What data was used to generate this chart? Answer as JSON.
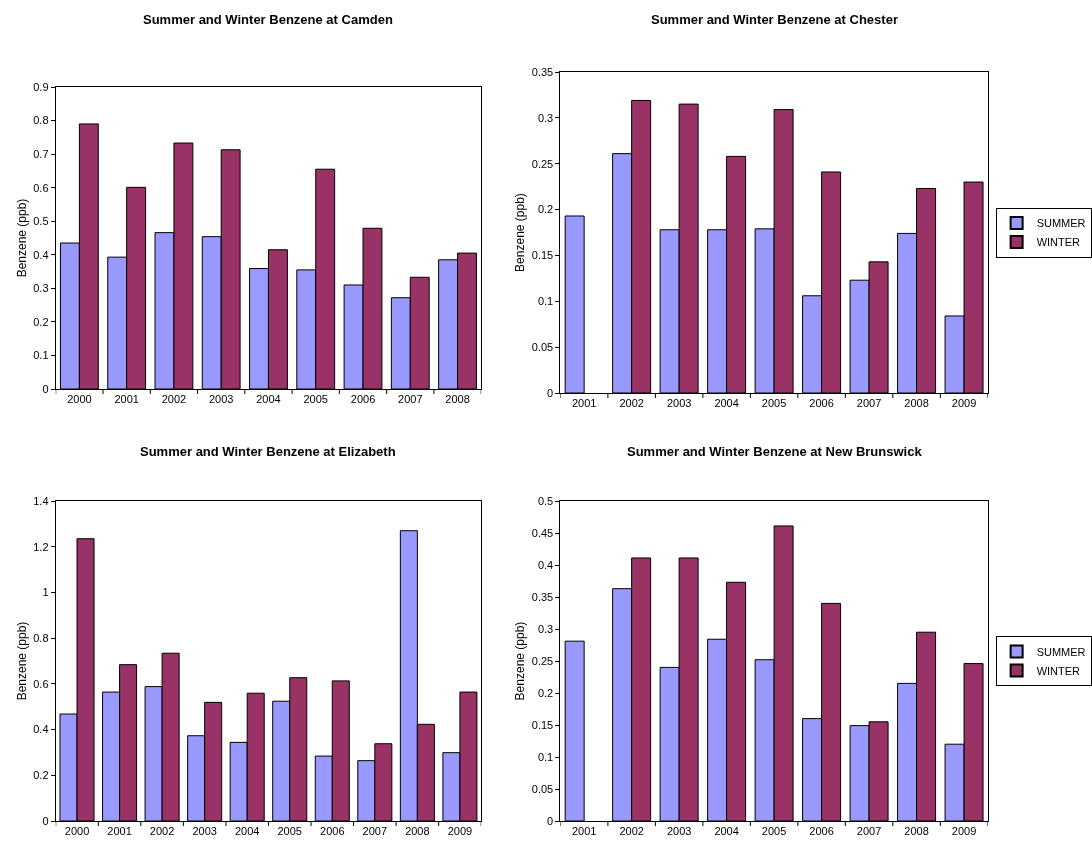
{
  "chart_data": [
    {
      "type": "bar",
      "title": "Summer and Winter Benzene at Camden",
      "ylabel": "Benzene (ppb)",
      "categories": [
        "2000",
        "2001",
        "2002",
        "2003",
        "2004",
        "2005",
        "2006",
        "2007",
        "2008"
      ],
      "ylim": [
        0,
        0.9
      ],
      "yticks": [
        0,
        0.1,
        0.2,
        0.3,
        0.4,
        0.5,
        0.6,
        0.7,
        0.8,
        0.9
      ],
      "legend": false,
      "series": [
        {
          "color": "#9999ff",
          "values": [
            0.435,
            0.393,
            0.466,
            0.454,
            0.359,
            0.355,
            0.31,
            0.272,
            0.385
          ]
        },
        {
          "color": "#993366",
          "values": [
            0.79,
            0.601,
            0.733,
            0.713,
            0.415,
            0.655,
            0.479,
            0.333,
            0.405
          ]
        }
      ]
    },
    {
      "type": "bar",
      "title": "Summer and Winter Benzene at Chester",
      "ylabel": "Benzene (ppb)",
      "categories": [
        "2001",
        "2002",
        "2003",
        "2004",
        "2005",
        "2006",
        "2007",
        "2008",
        "2009"
      ],
      "ylim": [
        0,
        0.35
      ],
      "yticks": [
        0,
        0.05,
        0.1,
        0.15,
        0.2,
        0.25,
        0.3,
        0.35
      ],
      "legend": "right",
      "series": [
        {
          "name": "SUMMER",
          "color": "#9999ff",
          "values": [
            0.193,
            0.261,
            0.178,
            0.178,
            0.179,
            0.106,
            0.123,
            0.174,
            0.084
          ]
        },
        {
          "name": "WINTER",
          "color": "#993366",
          "values": [
            null,
            0.319,
            0.315,
            0.258,
            0.309,
            0.241,
            0.143,
            0.223,
            0.23
          ]
        }
      ]
    },
    {
      "type": "bar",
      "title": "Summer and Winter Benzene at Elizabeth",
      "ylabel": "Benzene (ppb)",
      "categories": [
        "2000",
        "2001",
        "2002",
        "2003",
        "2004",
        "2005",
        "2006",
        "2007",
        "2008",
        "2009"
      ],
      "ylim": [
        0,
        1.4
      ],
      "yticks": [
        0,
        0.2,
        0.4,
        0.6,
        0.8,
        1,
        1.2,
        1.4
      ],
      "legend": false,
      "series": [
        {
          "color": "#9999ff",
          "values": [
            0.468,
            0.564,
            0.588,
            0.373,
            0.344,
            0.524,
            0.284,
            0.264,
            1.27,
            0.299
          ]
        },
        {
          "color": "#993366",
          "values": [
            1.235,
            0.684,
            0.734,
            0.519,
            0.559,
            0.627,
            0.613,
            0.338,
            0.423,
            0.564
          ]
        }
      ]
    },
    {
      "type": "bar",
      "title": "Summer and Winter Benzene at New Brunswick",
      "ylabel": "Benzene (ppb)",
      "categories": [
        "2001",
        "2002",
        "2003",
        "2004",
        "2005",
        "2006",
        "2007",
        "2008",
        "2009"
      ],
      "ylim": [
        0,
        0.5
      ],
      "yticks": [
        0,
        0.05,
        0.1,
        0.15,
        0.2,
        0.25,
        0.3,
        0.35,
        0.4,
        0.45,
        0.5
      ],
      "legend": "right",
      "series": [
        {
          "name": "SUMMER",
          "color": "#9999ff",
          "values": [
            0.281,
            0.363,
            0.24,
            0.284,
            0.252,
            0.16,
            0.149,
            0.215,
            0.12
          ]
        },
        {
          "name": "WINTER",
          "color": "#993366",
          "values": [
            null,
            0.411,
            0.411,
            0.373,
            0.461,
            0.34,
            0.155,
            0.295,
            0.246
          ]
        }
      ]
    }
  ]
}
